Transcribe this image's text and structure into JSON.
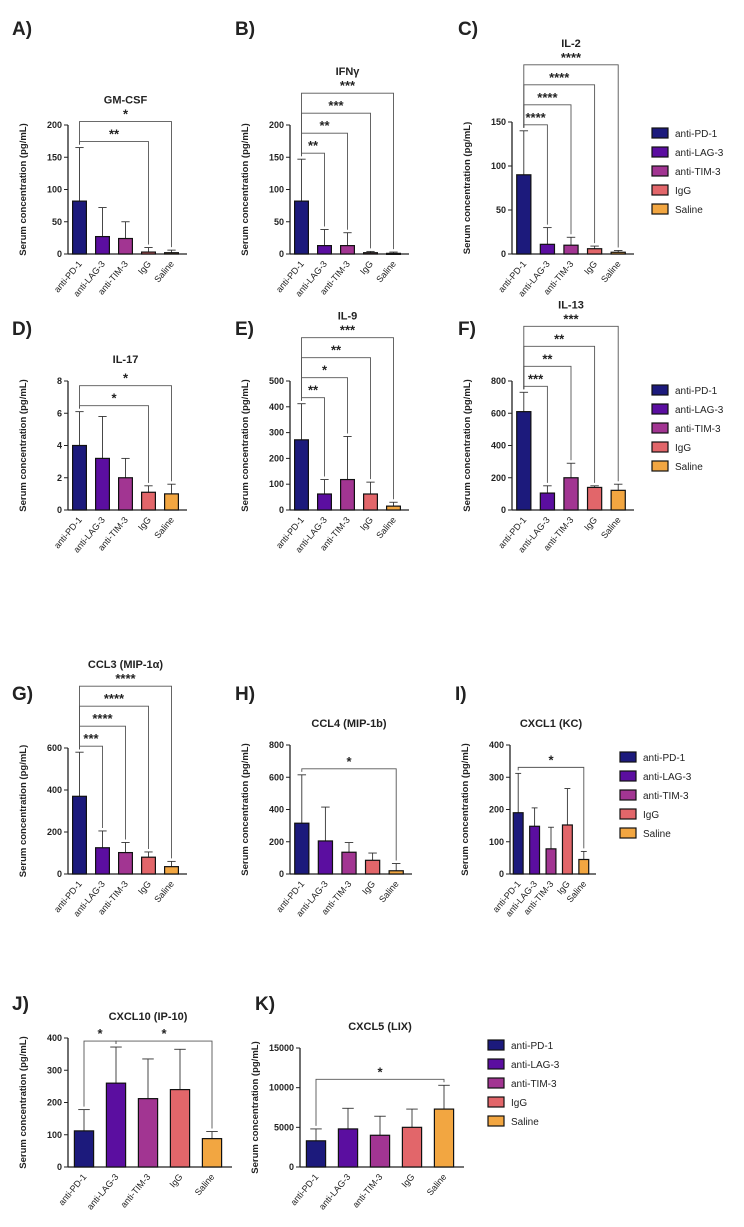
{
  "colors": {
    "anti-PD-1": "#1c1a7c",
    "anti-LAG-3": "#5b0ea0",
    "anti-TIM-3": "#a23592",
    "IgG": "#e2666a",
    "Saline": "#f2a641"
  },
  "legend": [
    "anti-PD-1",
    "anti-LAG-3",
    "anti-TIM-3",
    "IgG",
    "Saline"
  ],
  "chart_data": [
    {
      "panel": "A)",
      "type": "bar",
      "title": "GM-CSF",
      "ylabel": "Serum concentration (pg/mL)",
      "categories": [
        "anti-PD-1",
        "anti-LAG-3",
        "anti-TIM-3",
        "IgG",
        "Saline"
      ],
      "values": [
        82,
        27,
        24,
        3,
        2
      ],
      "error_top": [
        165,
        72,
        50,
        10,
        6
      ],
      "ylim": [
        0,
        200
      ],
      "yticks": [
        "0",
        "50",
        "100",
        "150",
        "200"
      ],
      "significance": [
        {
          "from": 0,
          "to": 3,
          "label": "**"
        },
        {
          "from": 0,
          "to": 4,
          "label": "*"
        }
      ]
    },
    {
      "panel": "B)",
      "type": "bar",
      "title": "IFNγ",
      "ylabel": "Serum concentration (pg/mL)",
      "categories": [
        "anti-PD-1",
        "anti-LAG-3",
        "anti-TIM-3",
        "IgG",
        "Saline"
      ],
      "values": [
        82,
        13,
        13,
        2,
        1
      ],
      "error_top": [
        147,
        38,
        33,
        4,
        3
      ],
      "ylim": [
        0,
        200
      ],
      "yticks": [
        "0",
        "50",
        "100",
        "150",
        "200"
      ],
      "significance": [
        {
          "from": 0,
          "to": 1,
          "label": "**"
        },
        {
          "from": 0,
          "to": 2,
          "label": "**"
        },
        {
          "from": 0,
          "to": 3,
          "label": "***"
        },
        {
          "from": 0,
          "to": 4,
          "label": "***"
        }
      ]
    },
    {
      "panel": "C)",
      "type": "bar",
      "title": "IL-2",
      "ylabel": "Serum concentration (pg/mL)",
      "categories": [
        "anti-PD-1",
        "anti-LAG-3",
        "anti-TIM-3",
        "IgG",
        "Saline"
      ],
      "values": [
        90,
        11,
        10,
        6,
        2
      ],
      "error_top": [
        140,
        30,
        19,
        9,
        4
      ],
      "ylim": [
        0,
        150
      ],
      "yticks": [
        "0",
        "50",
        "100",
        "150"
      ],
      "significance": [
        {
          "from": 0,
          "to": 1,
          "label": "****"
        },
        {
          "from": 0,
          "to": 2,
          "label": "****"
        },
        {
          "from": 0,
          "to": 3,
          "label": "****"
        },
        {
          "from": 0,
          "to": 4,
          "label": "****"
        }
      ]
    },
    {
      "panel": "D)",
      "type": "bar",
      "title": "IL-17",
      "ylabel": "Serum concentration (pg/mL)",
      "categories": [
        "anti-PD-1",
        "anti-LAG-3",
        "anti-TIM-3",
        "IgG",
        "Saline"
      ],
      "values": [
        4.0,
        3.2,
        2.0,
        1.1,
        1.0
      ],
      "error_top": [
        6.1,
        5.8,
        3.2,
        1.5,
        1.6
      ],
      "ylim": [
        0,
        8
      ],
      "yticks": [
        "0",
        "2",
        "4",
        "6",
        "8"
      ],
      "significance": [
        {
          "from": 0,
          "to": 3,
          "label": "*"
        },
        {
          "from": 0,
          "to": 4,
          "label": "*"
        }
      ]
    },
    {
      "panel": "E)",
      "type": "bar",
      "title": "IL-9",
      "ylabel": "Serum concentration (pg/mL)",
      "categories": [
        "anti-PD-1",
        "anti-LAG-3",
        "anti-TIM-3",
        "IgG",
        "Saline"
      ],
      "values": [
        272,
        62,
        118,
        62,
        15
      ],
      "error_top": [
        412,
        118,
        285,
        108,
        30
      ],
      "ylim": [
        0,
        500
      ],
      "yticks": [
        "0",
        "100",
        "200",
        "300",
        "400",
        "500"
      ],
      "significance": [
        {
          "from": 0,
          "to": 1,
          "label": "**"
        },
        {
          "from": 0,
          "to": 2,
          "label": "*"
        },
        {
          "from": 0,
          "to": 3,
          "label": "**"
        },
        {
          "from": 0,
          "to": 4,
          "label": "***"
        }
      ]
    },
    {
      "panel": "F)",
      "type": "bar",
      "title": "IL-13",
      "ylabel": "Serum concentration (pg/mL)",
      "categories": [
        "anti-PD-1",
        "anti-LAG-3",
        "anti-TIM-3",
        "IgG",
        "Saline"
      ],
      "values": [
        610,
        105,
        200,
        140,
        122
      ],
      "error_top": [
        730,
        150,
        290,
        150,
        160
      ],
      "ylim": [
        0,
        800
      ],
      "yticks": [
        "0",
        "200",
        "400",
        "600",
        "800"
      ],
      "significance": [
        {
          "from": 0,
          "to": 1,
          "label": "***"
        },
        {
          "from": 0,
          "to": 2,
          "label": "**"
        },
        {
          "from": 0,
          "to": 3,
          "label": "**"
        },
        {
          "from": 0,
          "to": 4,
          "label": "***"
        }
      ]
    },
    {
      "panel": "G)",
      "type": "bar",
      "title": "CCL3 (MIP-1α)",
      "ylabel": "Serum concentration (pg/mL)",
      "categories": [
        "anti-PD-1",
        "anti-LAG-3",
        "anti-TIM-3",
        "IgG",
        "Saline"
      ],
      "values": [
        370,
        125,
        102,
        80,
        35
      ],
      "error_top": [
        580,
        205,
        150,
        105,
        60
      ],
      "ylim": [
        0,
        600
      ],
      "yticks": [
        "0",
        "200",
        "400",
        "600"
      ],
      "significance": [
        {
          "from": 0,
          "to": 1,
          "label": "***"
        },
        {
          "from": 0,
          "to": 2,
          "label": "****"
        },
        {
          "from": 0,
          "to": 3,
          "label": "****"
        },
        {
          "from": 0,
          "to": 4,
          "label": "****"
        }
      ]
    },
    {
      "panel": "H)",
      "type": "bar",
      "title": "CCL4 (MIP-1b)",
      "ylabel": "Serum concentration (pg/mL)",
      "categories": [
        "anti-PD-1",
        "anti-LAG-3",
        "anti-TIM-3",
        "IgG",
        "Saline"
      ],
      "values": [
        315,
        205,
        135,
        85,
        20
      ],
      "error_top": [
        615,
        415,
        195,
        130,
        65
      ],
      "ylim": [
        0,
        800
      ],
      "yticks": [
        "0",
        "200",
        "400",
        "600",
        "800"
      ],
      "significance": [
        {
          "from": 0,
          "to": 4,
          "label": "*"
        }
      ]
    },
    {
      "panel": "I)",
      "type": "bar",
      "title": "CXCL1 (KC)",
      "ylabel": "Serum concentration (pg/mL)",
      "categories": [
        "anti-PD-1",
        "anti-LAG-3",
        "anti-TIM-3",
        "IgG",
        "Saline"
      ],
      "values": [
        190,
        148,
        78,
        152,
        45
      ],
      "error_top": [
        312,
        205,
        145,
        265,
        70
      ],
      "ylim": [
        0,
        400
      ],
      "yticks": [
        "0",
        "100",
        "200",
        "300",
        "400"
      ],
      "significance": [
        {
          "from": 0,
          "to": 4,
          "label": "*"
        }
      ]
    },
    {
      "panel": "J)",
      "type": "bar",
      "title": "CXCL10 (IP-10)",
      "ylabel": "Serum concentration (pg/mL)",
      "categories": [
        "anti-PD-1",
        "anti-LAG-3",
        "anti-TIM-3",
        "IgG",
        "Saline"
      ],
      "values": [
        112,
        260,
        212,
        240,
        88
      ],
      "error_top": [
        178,
        372,
        335,
        365,
        110
      ],
      "ylim": [
        0,
        400
      ],
      "yticks": [
        "0",
        "100",
        "200",
        "300",
        "400"
      ],
      "significance": [
        {
          "from": 0,
          "to": 1,
          "label": "*"
        },
        {
          "from": 1,
          "to": 4,
          "label": "*"
        }
      ]
    },
    {
      "panel": "K)",
      "type": "bar",
      "title": "CXCL5 (LIX)",
      "ylabel": "Serum concentration (pg/mL)",
      "categories": [
        "anti-PD-1",
        "anti-LAG-3",
        "anti-TIM-3",
        "IgG",
        "Saline"
      ],
      "values": [
        3300,
        4800,
        4000,
        5000,
        7300
      ],
      "error_top": [
        4800,
        7400,
        6400,
        7300,
        10300
      ],
      "ylim": [
        0,
        15000
      ],
      "yticks": [
        "0",
        "5000",
        "10000",
        "15000"
      ],
      "significance": [
        {
          "from": 0,
          "to": 4,
          "label": "*"
        }
      ]
    }
  ]
}
